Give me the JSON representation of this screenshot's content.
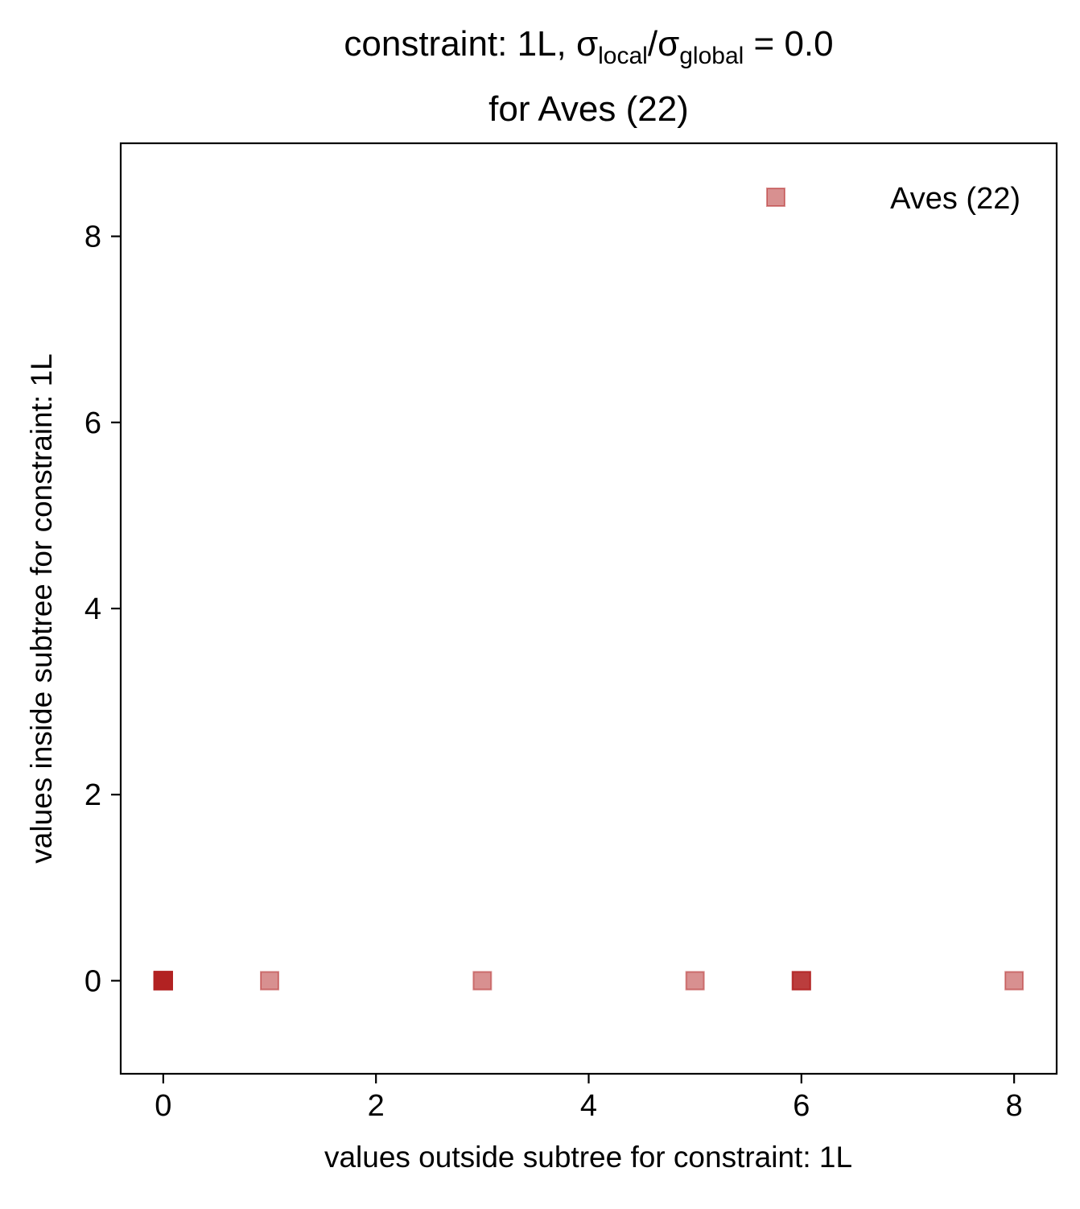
{
  "chart_data": {
    "type": "scatter",
    "title": {
      "line1_prefix": "constraint: 1L, σ",
      "sub_local": "local",
      "slash": "/σ",
      "sub_global": "global",
      "line1_suffix": " =  0.0",
      "line2": "for Aves (22)"
    },
    "xlabel": "values outside subtree for constraint: 1L",
    "ylabel": "values inside subtree for constraint: 1L",
    "xlim": [
      -0.4,
      8.4
    ],
    "ylim": [
      -1,
      9
    ],
    "xticks": [
      0,
      2,
      4,
      6,
      8
    ],
    "yticks": [
      0,
      2,
      4,
      6,
      8
    ],
    "legend": {
      "position": "top-right",
      "entries": [
        "Aves (22)"
      ]
    },
    "marker_color": "#b22222",
    "marker_alpha": 0.5,
    "series": [
      {
        "name": "Aves (22)",
        "points": [
          {
            "x": 0,
            "y": 0
          },
          {
            "x": 0,
            "y": 0
          },
          {
            "x": 0,
            "y": 0
          },
          {
            "x": 0,
            "y": 0
          },
          {
            "x": 0,
            "y": 0
          },
          {
            "x": 0,
            "y": 0
          },
          {
            "x": 0,
            "y": 0
          },
          {
            "x": 0,
            "y": 0
          },
          {
            "x": 0,
            "y": 0
          },
          {
            "x": 0,
            "y": 0
          },
          {
            "x": 0,
            "y": 0
          },
          {
            "x": 0,
            "y": 0
          },
          {
            "x": 0,
            "y": 0
          },
          {
            "x": 0,
            "y": 0
          },
          {
            "x": 0,
            "y": 0
          },
          {
            "x": 1,
            "y": 0
          },
          {
            "x": 3,
            "y": 0
          },
          {
            "x": 5,
            "y": 0
          },
          {
            "x": 6,
            "y": 0
          },
          {
            "x": 6,
            "y": 0
          },
          {
            "x": 6,
            "y": 0
          },
          {
            "x": 8,
            "y": 0
          }
        ]
      }
    ]
  }
}
